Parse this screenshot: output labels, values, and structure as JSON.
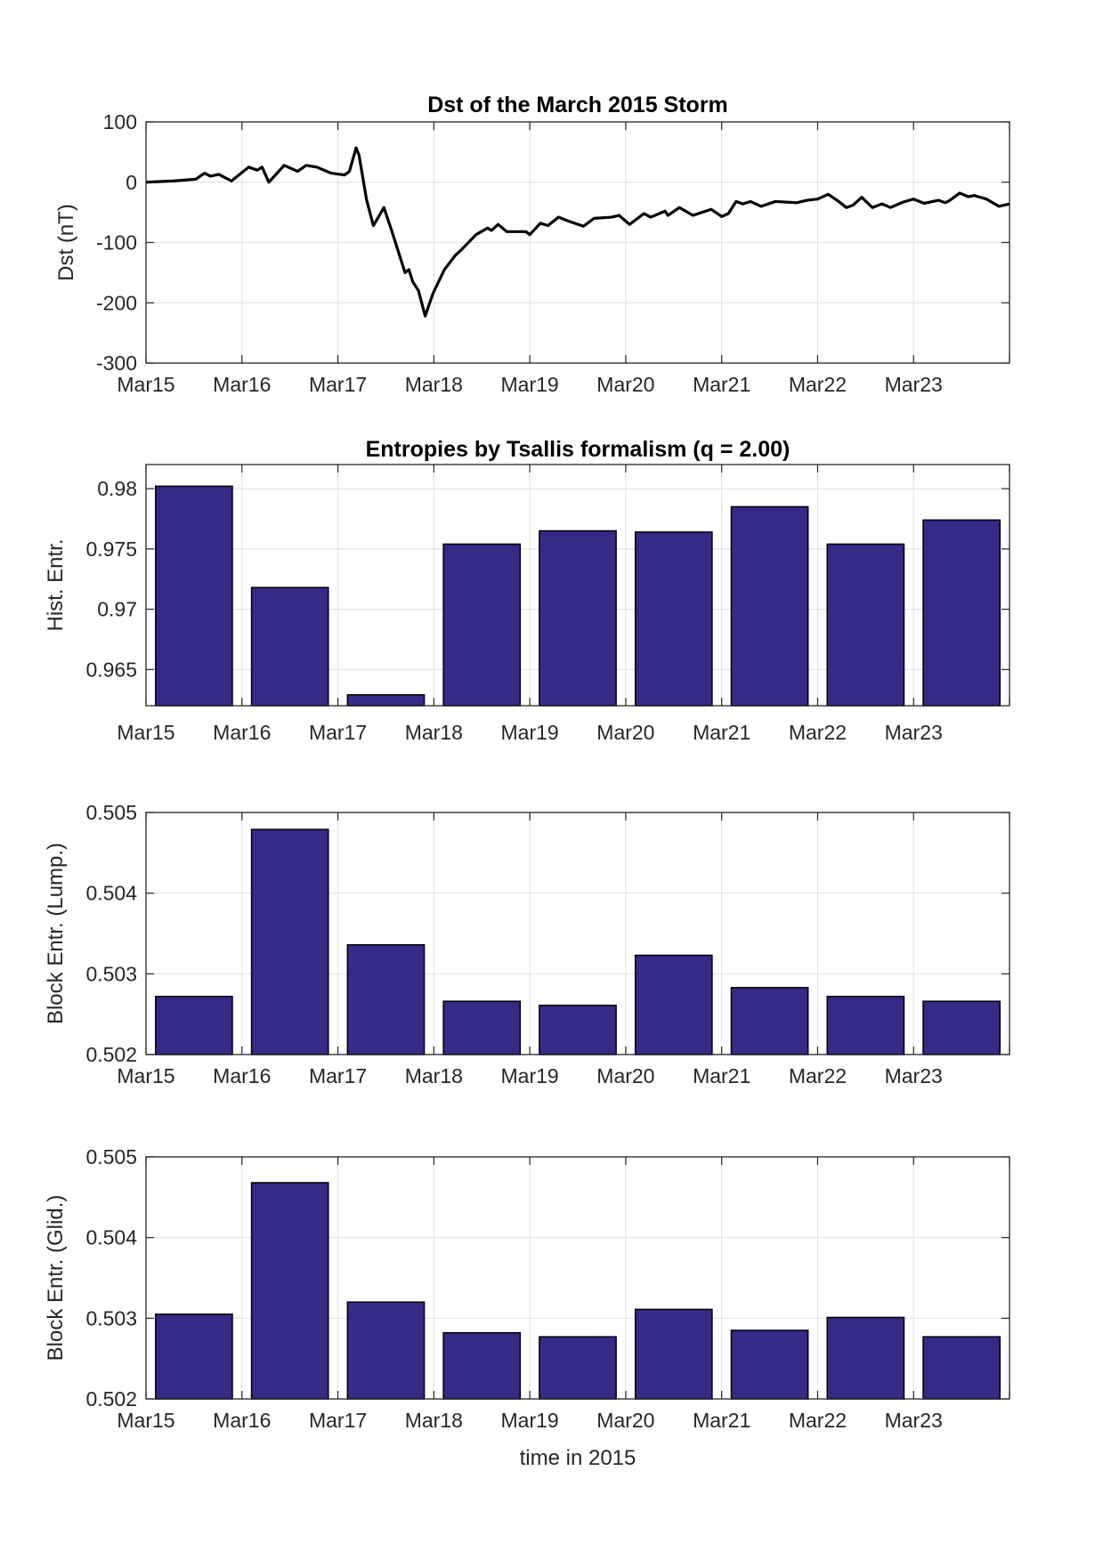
{
  "chart_data": [
    {
      "type": "line",
      "title": "Dst of the March 2015 Storm",
      "ylabel": "Dst (nT)",
      "xlabel": "",
      "xlim": [
        0,
        9
      ],
      "ylim": [
        -300,
        100
      ],
      "yticks": [
        100,
        0,
        -100,
        -200,
        -300
      ],
      "xtick_labels": [
        "Mar15",
        "Mar16",
        "Mar17",
        "Mar18",
        "Mar19",
        "Mar20",
        "Mar21",
        "Mar22",
        "Mar23"
      ],
      "grid": true,
      "color": "#000000",
      "x_unit": "days since Mar15 2015",
      "x": [
        0,
        0.28,
        0.52,
        0.61,
        0.67,
        0.76,
        0.89,
        1.07,
        1.16,
        1.21,
        1.28,
        1.44,
        1.58,
        1.67,
        1.78,
        1.93,
        2.07,
        2.12,
        2.19,
        2.22,
        2.3,
        2.37,
        2.48,
        2.56,
        2.7,
        2.74,
        2.78,
        2.84,
        2.91,
        2.99,
        3.11,
        3.22,
        3.3,
        3.44,
        3.56,
        3.6,
        3.67,
        3.76,
        3.96,
        4.0,
        4.11,
        4.19,
        4.3,
        4.41,
        4.56,
        4.67,
        4.85,
        4.93,
        5.04,
        5.19,
        5.26,
        5.41,
        5.44,
        5.56,
        5.7,
        5.89,
        6.0,
        6.07,
        6.15,
        6.22,
        6.3,
        6.41,
        6.56,
        6.78,
        6.89,
        7.0,
        7.11,
        7.22,
        7.3,
        7.37,
        7.46,
        7.57,
        7.67,
        7.76,
        7.89,
        8.0,
        8.11,
        8.26,
        8.33,
        8.37,
        8.48,
        8.57,
        8.63,
        8.76,
        8.89,
        9.0
      ],
      "y": [
        0,
        2,
        5,
        15,
        10,
        13,
        2,
        25,
        20,
        25,
        0,
        28,
        18,
        28,
        25,
        15,
        12,
        18,
        57,
        45,
        -30,
        -72,
        -42,
        -80,
        -150,
        -145,
        -165,
        -180,
        -222,
        -185,
        -145,
        -122,
        -110,
        -87,
        -76,
        -80,
        -70,
        -82,
        -82,
        -87,
        -68,
        -72,
        -58,
        -65,
        -73,
        -60,
        -58,
        -55,
        -70,
        -52,
        -58,
        -48,
        -55,
        -42,
        -55,
        -45,
        -57,
        -52,
        -32,
        -36,
        -32,
        -40,
        -32,
        -34,
        -30,
        -28,
        -20,
        -32,
        -42,
        -38,
        -25,
        -42,
        -36,
        -42,
        -33,
        -28,
        -35,
        -30,
        -34,
        -31,
        -18,
        -24,
        -22,
        -28,
        -40,
        -36
      ]
    },
    {
      "type": "bar",
      "title": "Entropies by Tsallis formalism (q = 2.00)",
      "ylabel": "Hist. Entr.",
      "xlabel": "",
      "ylim": [
        0.962,
        0.982
      ],
      "yticks": [
        0.98,
        0.975,
        0.97,
        0.965
      ],
      "ytick_labels": [
        "0.98",
        "0.975",
        "0.97",
        "0.965"
      ],
      "xtick_labels": [
        "Mar15",
        "Mar16",
        "Mar17",
        "Mar18",
        "Mar19",
        "Mar20",
        "Mar21",
        "Mar22",
        "Mar23"
      ],
      "grid": true,
      "color": "#352a87",
      "values": [
        0.9802,
        0.9718,
        0.9629,
        0.9754,
        0.9765,
        0.9764,
        0.9785,
        0.9754,
        0.9774
      ]
    },
    {
      "type": "bar",
      "title": "",
      "ylabel": "Block Entr. (Lump.)",
      "xlabel": "",
      "ylim": [
        0.502,
        0.505
      ],
      "yticks": [
        0.505,
        0.504,
        0.503,
        0.502
      ],
      "ytick_labels": [
        "0.505",
        "0.504",
        "0.503",
        "0.502"
      ],
      "xtick_labels": [
        "Mar15",
        "Mar16",
        "Mar17",
        "Mar18",
        "Mar19",
        "Mar20",
        "Mar21",
        "Mar22",
        "Mar23"
      ],
      "grid": true,
      "color": "#352a87",
      "values": [
        0.50272,
        0.50479,
        0.50336,
        0.50266,
        0.50261,
        0.50323,
        0.50283,
        0.50272,
        0.50266
      ]
    },
    {
      "type": "bar",
      "title": "",
      "ylabel": "Block Entr. (Glid.)",
      "xlabel": "time in 2015",
      "ylim": [
        0.502,
        0.505
      ],
      "yticks": [
        0.505,
        0.504,
        0.503,
        0.502
      ],
      "ytick_labels": [
        "0.505",
        "0.504",
        "0.503",
        "0.502"
      ],
      "xtick_labels": [
        "Mar15",
        "Mar16",
        "Mar17",
        "Mar18",
        "Mar19",
        "Mar20",
        "Mar21",
        "Mar22",
        "Mar23"
      ],
      "grid": true,
      "color": "#352a87",
      "values": [
        0.50305,
        0.50468,
        0.5032,
        0.50282,
        0.50277,
        0.50311,
        0.50285,
        0.50301,
        0.50277
      ]
    }
  ]
}
